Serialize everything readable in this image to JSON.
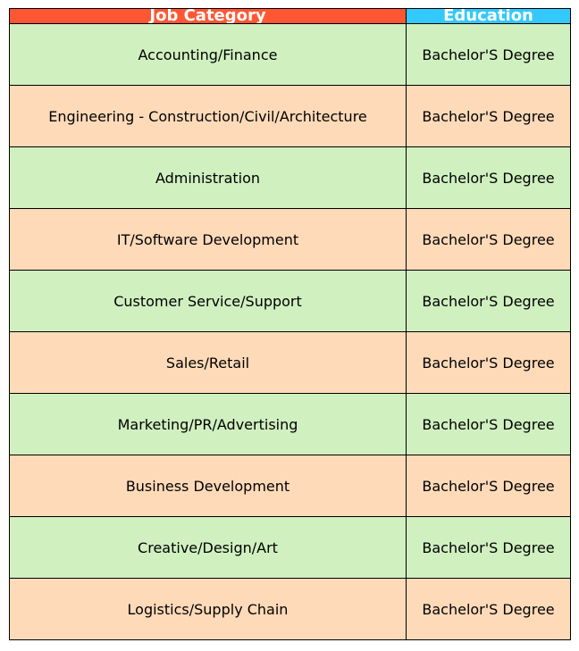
{
  "chart_data": {
    "type": "table",
    "columns": [
      "Job Category",
      "Education"
    ],
    "rows": [
      [
        "Accounting/Finance",
        "Bachelor'S Degree"
      ],
      [
        "Engineering - Construction/Civil/Architecture",
        "Bachelor'S Degree"
      ],
      [
        "Administration",
        "Bachelor'S Degree"
      ],
      [
        "IT/Software Development",
        "Bachelor'S Degree"
      ],
      [
        "Customer Service/Support",
        "Bachelor'S Degree"
      ],
      [
        "Sales/Retail",
        "Bachelor'S Degree"
      ],
      [
        "Marketing/PR/Advertising",
        "Bachelor'S Degree"
      ],
      [
        "Business Development",
        "Bachelor'S Degree"
      ],
      [
        "Creative/Design/Art",
        "Bachelor'S Degree"
      ],
      [
        "Logistics/Supply Chain",
        "Bachelor'S Degree"
      ]
    ]
  },
  "colors": {
    "header_job_category": "#ff5733",
    "header_education": "#33c8ff",
    "row_even": "#d0f0c0",
    "row_odd": "#ffdab9",
    "border": "#000000",
    "header_text": "#ffffff"
  }
}
